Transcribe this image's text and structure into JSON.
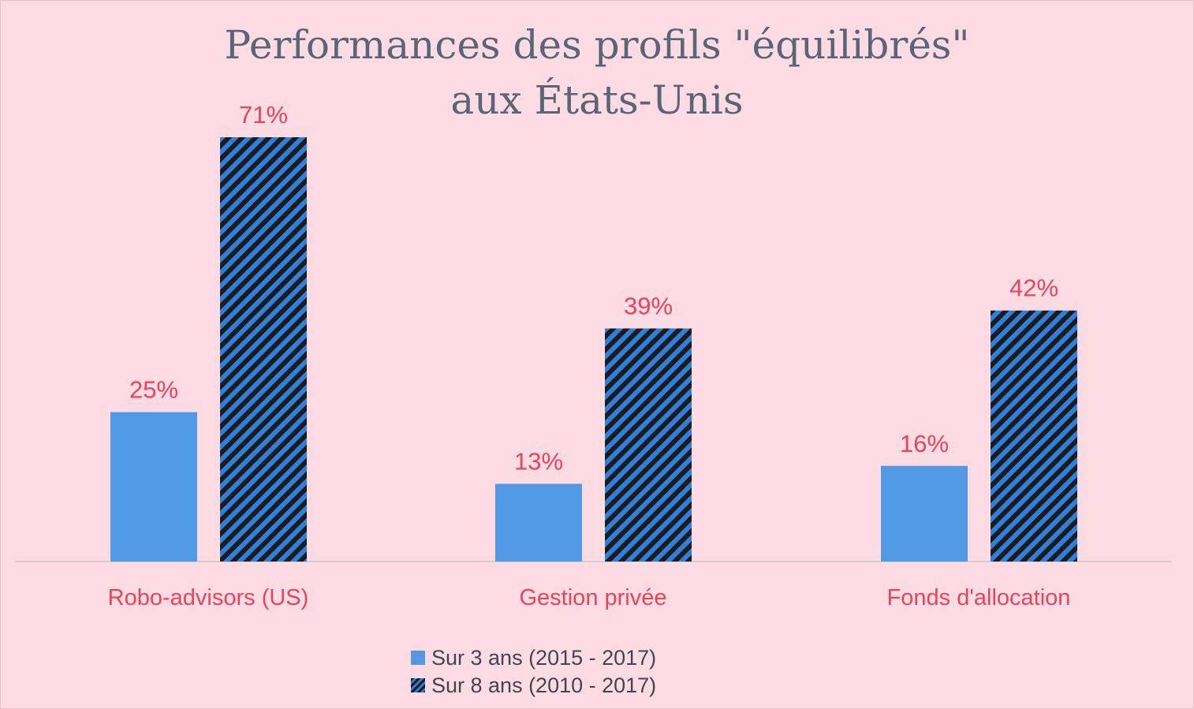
{
  "chart_data": {
    "type": "bar",
    "title": [
      "Performances des profils \"équilibrés\"",
      "aux États-Unis"
    ],
    "categories": [
      "Robo-advisors (US)",
      "Gestion privée",
      "Fonds d'allocation"
    ],
    "series": [
      {
        "name": "Sur 3 ans (2015 - 2017)",
        "values": [
          25,
          13,
          16
        ],
        "labels": [
          "25%",
          "13%",
          "16%"
        ],
        "color": "#5299e4",
        "pattern": "solid"
      },
      {
        "name": "Sur 8 ans (2010 - 2017)",
        "values": [
          71,
          39,
          42
        ],
        "labels": [
          "71%",
          "39%",
          "42%"
        ],
        "color": "#2f80dd",
        "pattern": "diagonal-stripes-black"
      }
    ],
    "ylim": [
      0,
      76
    ],
    "grid": false,
    "legend": "bottom-center",
    "label_color": "#e5455e"
  }
}
